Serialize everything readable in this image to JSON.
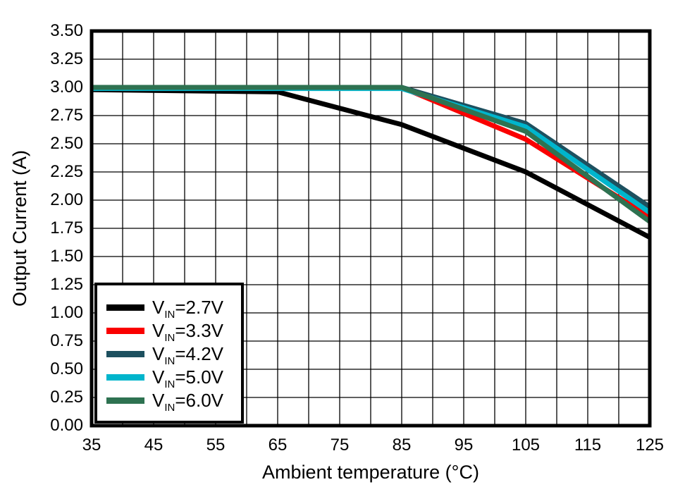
{
  "figure": {
    "background": "#ffffff",
    "grid_color": "#000000",
    "border_color": "#000000"
  },
  "chart_data": {
    "type": "line",
    "title": "",
    "xlabel": "Ambient temperature (°C)",
    "ylabel": "Output Current (A)",
    "xlim": [
      35,
      125
    ],
    "ylim": [
      0,
      3.5
    ],
    "x_grid_step": 5,
    "y_grid_step": 0.25,
    "grid": true,
    "legend_position": "lower-left",
    "line_width": 7,
    "x_ticks": [
      {
        "value": 35,
        "label": "35"
      },
      {
        "value": 45,
        "label": "45"
      },
      {
        "value": 55,
        "label": "55"
      },
      {
        "value": 65,
        "label": "65"
      },
      {
        "value": 75,
        "label": "75"
      },
      {
        "value": 85,
        "label": "85"
      },
      {
        "value": 95,
        "label": "95"
      },
      {
        "value": 105,
        "label": "105"
      },
      {
        "value": 115,
        "label": "115"
      },
      {
        "value": 125,
        "label": "125"
      }
    ],
    "y_ticks": [
      {
        "value": 0.0,
        "label": "0.00"
      },
      {
        "value": 0.25,
        "label": "0.25"
      },
      {
        "value": 0.5,
        "label": "0.50"
      },
      {
        "value": 0.75,
        "label": "0.75"
      },
      {
        "value": 1.0,
        "label": "1.00"
      },
      {
        "value": 1.25,
        "label": "1.25"
      },
      {
        "value": 1.5,
        "label": "1.50"
      },
      {
        "value": 1.75,
        "label": "1.75"
      },
      {
        "value": 2.0,
        "label": "2.00"
      },
      {
        "value": 2.25,
        "label": "2.25"
      },
      {
        "value": 2.5,
        "label": "2.50"
      },
      {
        "value": 2.75,
        "label": "2.75"
      },
      {
        "value": 3.0,
        "label": "3.00"
      },
      {
        "value": 3.25,
        "label": "3.25"
      },
      {
        "value": 3.5,
        "label": "3.50"
      }
    ],
    "series": [
      {
        "key": "vin-2-7v",
        "name": "VIN=2.7V",
        "legend": {
          "prefix": "V",
          "sub": "IN",
          "rest": "=2.7V"
        },
        "color": "#000000",
        "x": [
          35,
          65,
          85,
          105,
          125
        ],
        "y": [
          2.98,
          2.96,
          2.67,
          2.25,
          1.67
        ]
      },
      {
        "key": "vin-3-3v",
        "name": "VIN=3.3V",
        "legend": {
          "prefix": "V",
          "sub": "IN",
          "rest": "=3.3V"
        },
        "color": "#fa0000",
        "x": [
          35,
          85,
          105,
          125
        ],
        "y": [
          3.0,
          3.0,
          2.54,
          1.85
        ]
      },
      {
        "key": "vin-4-2v",
        "name": "VIN=4.2V",
        "legend": {
          "prefix": "V",
          "sub": "IN",
          "rest": "=4.2V"
        },
        "color": "#1d505f",
        "x": [
          35,
          85,
          105,
          125
        ],
        "y": [
          3.0,
          3.0,
          2.68,
          1.94
        ]
      },
      {
        "key": "vin-5-0v",
        "name": "VIN=5.0V",
        "legend": {
          "prefix": "V",
          "sub": "IN",
          "rest": "=5.0V"
        },
        "color": "#00b5cc",
        "x": [
          35,
          85,
          105,
          125
        ],
        "y": [
          2.99,
          2.99,
          2.65,
          1.89
        ]
      },
      {
        "key": "vin-6-0v",
        "name": "VIN=6.0V",
        "legend": {
          "prefix": "V",
          "sub": "IN",
          "rest": "=6.0V"
        },
        "color": "#2e7251",
        "x": [
          35,
          85,
          105,
          125
        ],
        "y": [
          3.0,
          3.0,
          2.61,
          1.81
        ]
      }
    ]
  }
}
